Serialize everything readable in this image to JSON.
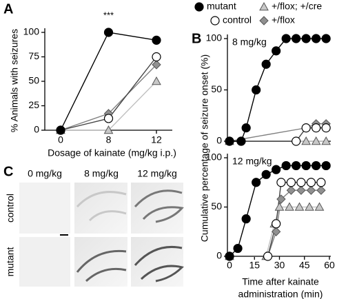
{
  "chart_data": [
    {
      "type": "line",
      "panel_label": "A",
      "annotation": "***",
      "xlabel": "Dosage of kainate (mg/kg  i.p.)",
      "ylabel": "% Animals with seizures",
      "categories": [
        "0",
        "8",
        "12"
      ],
      "ylim": [
        0,
        100
      ],
      "yticks": [
        0,
        25,
        50,
        75,
        100
      ],
      "series": [
        {
          "name": "mutant",
          "color": "#000000",
          "fill": "#000000",
          "marker": "circle",
          "values": [
            0,
            100,
            92
          ]
        },
        {
          "name": "control",
          "color": "#444444",
          "fill": "#ffffff",
          "marker": "circle",
          "values": [
            0,
            12,
            75
          ]
        },
        {
          "name": "+/flox; +/cre",
          "color": "#c0c0c0",
          "fill": "#c8c8c8",
          "marker": "triangle",
          "values": [
            0,
            0,
            50
          ]
        },
        {
          "name": "+/flox",
          "color": "#808080",
          "fill": "#909090",
          "marker": "diamond",
          "values": [
            0,
            17,
            67
          ]
        }
      ]
    },
    {
      "type": "line",
      "panel_label": "B",
      "subtitle": "8 mg/kg",
      "ylabel": "Cumulative percentage of seizure onset (%)",
      "xlim": [
        0,
        60
      ],
      "ylim": [
        0,
        100
      ],
      "yticks": [
        0,
        50,
        100
      ],
      "series": [
        {
          "name": "mutant",
          "color": "#000000",
          "fill": "#000000",
          "marker": "circle",
          "x": [
            0,
            7,
            10,
            16,
            22,
            28,
            34,
            40,
            46,
            52,
            58
          ],
          "values": [
            0,
            0,
            13,
            50,
            75,
            88,
            100,
            100,
            100,
            100,
            100
          ]
        },
        {
          "name": "control",
          "color": "#444444",
          "fill": "#ffffff",
          "marker": "circle",
          "x": [
            0,
            7,
            40,
            46,
            52,
            58
          ],
          "values": [
            0,
            0,
            0,
            13,
            13,
            13
          ]
        },
        {
          "name": "+/flox; +/cre",
          "color": "#c0c0c0",
          "fill": "#c8c8c8",
          "marker": "triangle",
          "x": [
            0,
            46,
            52,
            58
          ],
          "values": [
            0,
            0,
            0,
            0
          ]
        },
        {
          "name": "+/flox",
          "color": "#808080",
          "fill": "#909090",
          "marker": "diamond",
          "x": [
            0,
            46,
            52,
            58
          ],
          "values": [
            0,
            13,
            17,
            17
          ]
        }
      ]
    },
    {
      "type": "line",
      "subtitle": "12 mg/kg",
      "xlabel": [
        "Time after kainate",
        "administration (min)"
      ],
      "xlim": [
        0,
        60
      ],
      "xticks": [
        0,
        15,
        30,
        45,
        60
      ],
      "ylim": [
        0,
        100
      ],
      "yticks": [
        0,
        50,
        100
      ],
      "series": [
        {
          "name": "mutant",
          "color": "#000000",
          "fill": "#000000",
          "marker": "circle",
          "x": [
            0,
            5,
            10,
            16,
            22,
            28,
            34,
            40,
            46,
            52,
            58
          ],
          "values": [
            0,
            8,
            38,
            75,
            83,
            88,
            92,
            92,
            92,
            92,
            92
          ]
        },
        {
          "name": "control",
          "color": "#444444",
          "fill": "#ffffff",
          "marker": "circle",
          "x": [
            0,
            23,
            28,
            31,
            37,
            43,
            49,
            55
          ],
          "values": [
            0,
            0,
            33,
            75,
            75,
            75,
            75,
            75
          ]
        },
        {
          "name": "+/flox; +/cre",
          "color": "#c0c0c0",
          "fill": "#c8c8c8",
          "marker": "triangle",
          "x": [
            0,
            22,
            27,
            30,
            36,
            42,
            48,
            54
          ],
          "values": [
            0,
            0,
            33,
            50,
            50,
            50,
            50,
            50
          ]
        },
        {
          "name": "+/flox",
          "color": "#808080",
          "fill": "#909090",
          "marker": "diamond",
          "x": [
            0,
            23,
            28,
            31,
            37,
            43,
            49,
            55
          ],
          "values": [
            0,
            0,
            25,
            58,
            67,
            67,
            67,
            67
          ]
        }
      ]
    }
  ],
  "panel_c": {
    "label": "C",
    "columns": [
      "0 mg/kg",
      "8 mg/kg",
      "12 mg/kg"
    ],
    "rows": [
      "control",
      "mutant"
    ]
  }
}
